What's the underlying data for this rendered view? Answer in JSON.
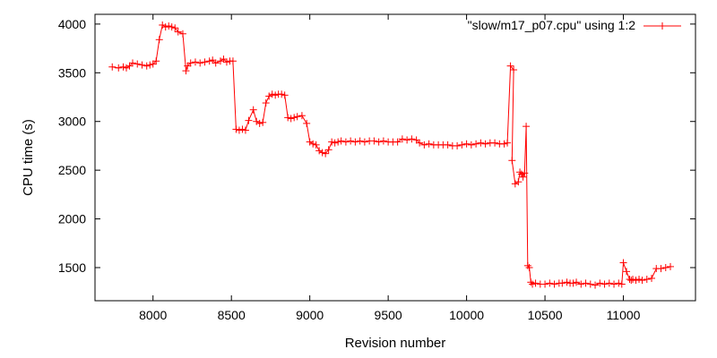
{
  "chart_data": {
    "type": "line",
    "xlabel": "Revision number",
    "ylabel": "CPU time (s)",
    "xlim": [
      7630,
      11460
    ],
    "ylim": [
      1160,
      4100
    ],
    "xticks": [
      8000,
      8500,
      9000,
      9500,
      10000,
      10500,
      11000
    ],
    "yticks": [
      1500,
      2000,
      2500,
      3000,
      3500,
      4000
    ],
    "grid": false,
    "legend_position": "top-right",
    "series": [
      {
        "name": "\"slow/m17_p07.cpu\" using 1:2",
        "color": "#ff0000",
        "marker": "plus",
        "points": [
          [
            7740,
            3560
          ],
          [
            7780,
            3550
          ],
          [
            7810,
            3560
          ],
          [
            7830,
            3550
          ],
          [
            7850,
            3570
          ],
          [
            7870,
            3600
          ],
          [
            7900,
            3590
          ],
          [
            7930,
            3580
          ],
          [
            7960,
            3570
          ],
          [
            7980,
            3580
          ],
          [
            8000,
            3590
          ],
          [
            8020,
            3620
          ],
          [
            8040,
            3840
          ],
          [
            8060,
            3990
          ],
          [
            8080,
            3970
          ],
          [
            8100,
            3980
          ],
          [
            8120,
            3970
          ],
          [
            8140,
            3960
          ],
          [
            8160,
            3920
          ],
          [
            8190,
            3900
          ],
          [
            8210,
            3520
          ],
          [
            8220,
            3570
          ],
          [
            8240,
            3600
          ],
          [
            8270,
            3610
          ],
          [
            8300,
            3600
          ],
          [
            8330,
            3610
          ],
          [
            8360,
            3620
          ],
          [
            8380,
            3630
          ],
          [
            8400,
            3600
          ],
          [
            8430,
            3620
          ],
          [
            8450,
            3640
          ],
          [
            8470,
            3610
          ],
          [
            8490,
            3620
          ],
          [
            8510,
            3620
          ],
          [
            8530,
            2920
          ],
          [
            8550,
            2910
          ],
          [
            8570,
            2920
          ],
          [
            8590,
            2910
          ],
          [
            8610,
            3010
          ],
          [
            8640,
            3120
          ],
          [
            8660,
            3000
          ],
          [
            8680,
            2980
          ],
          [
            8700,
            2990
          ],
          [
            8720,
            3190
          ],
          [
            8740,
            3260
          ],
          [
            8760,
            3280
          ],
          [
            8780,
            3270
          ],
          [
            8800,
            3280
          ],
          [
            8820,
            3280
          ],
          [
            8840,
            3270
          ],
          [
            8860,
            3040
          ],
          [
            8880,
            3030
          ],
          [
            8900,
            3040
          ],
          [
            8920,
            3050
          ],
          [
            8950,
            3060
          ],
          [
            8980,
            2980
          ],
          [
            9000,
            2790
          ],
          [
            9020,
            2770
          ],
          [
            9040,
            2760
          ],
          [
            9060,
            2700
          ],
          [
            9080,
            2680
          ],
          [
            9100,
            2670
          ],
          [
            9120,
            2710
          ],
          [
            9140,
            2790
          ],
          [
            9160,
            2780
          ],
          [
            9180,
            2790
          ],
          [
            9200,
            2800
          ],
          [
            9230,
            2790
          ],
          [
            9260,
            2800
          ],
          [
            9290,
            2790
          ],
          [
            9320,
            2800
          ],
          [
            9350,
            2790
          ],
          [
            9380,
            2800
          ],
          [
            9410,
            2800
          ],
          [
            9440,
            2790
          ],
          [
            9470,
            2800
          ],
          [
            9500,
            2790
          ],
          [
            9530,
            2790
          ],
          [
            9560,
            2790
          ],
          [
            9590,
            2820
          ],
          [
            9620,
            2810
          ],
          [
            9650,
            2820
          ],
          [
            9680,
            2810
          ],
          [
            9700,
            2780
          ],
          [
            9730,
            2760
          ],
          [
            9760,
            2770
          ],
          [
            9790,
            2760
          ],
          [
            9820,
            2760
          ],
          [
            9850,
            2760
          ],
          [
            9880,
            2760
          ],
          [
            9910,
            2750
          ],
          [
            9940,
            2750
          ],
          [
            9970,
            2760
          ],
          [
            10000,
            2770
          ],
          [
            10030,
            2760
          ],
          [
            10060,
            2770
          ],
          [
            10090,
            2780
          ],
          [
            10120,
            2770
          ],
          [
            10150,
            2780
          ],
          [
            10180,
            2780
          ],
          [
            10210,
            2770
          ],
          [
            10240,
            2770
          ],
          [
            10260,
            2780
          ],
          [
            10280,
            3570
          ],
          [
            10300,
            3530
          ],
          [
            10290,
            2600
          ],
          [
            10310,
            2360
          ],
          [
            10330,
            2380
          ],
          [
            10340,
            2480
          ],
          [
            10350,
            2460
          ],
          [
            10360,
            2430
          ],
          [
            10370,
            2470
          ],
          [
            10380,
            2950
          ],
          [
            10390,
            1520
          ],
          [
            10400,
            1500
          ],
          [
            10410,
            1350
          ],
          [
            10420,
            1330
          ],
          [
            10440,
            1340
          ],
          [
            10470,
            1330
          ],
          [
            10500,
            1330
          ],
          [
            10530,
            1340
          ],
          [
            10560,
            1330
          ],
          [
            10590,
            1340
          ],
          [
            10610,
            1340
          ],
          [
            10640,
            1350
          ],
          [
            10660,
            1340
          ],
          [
            10680,
            1340
          ],
          [
            10700,
            1350
          ],
          [
            10730,
            1330
          ],
          [
            10760,
            1340
          ],
          [
            10790,
            1330
          ],
          [
            10820,
            1320
          ],
          [
            10850,
            1340
          ],
          [
            10880,
            1330
          ],
          [
            10910,
            1340
          ],
          [
            10940,
            1330
          ],
          [
            10970,
            1340
          ],
          [
            10990,
            1330
          ],
          [
            11000,
            1550
          ],
          [
            11020,
            1460
          ],
          [
            11040,
            1380
          ],
          [
            11050,
            1370
          ],
          [
            11060,
            1380
          ],
          [
            11080,
            1370
          ],
          [
            11100,
            1380
          ],
          [
            11120,
            1370
          ],
          [
            11150,
            1380
          ],
          [
            11180,
            1390
          ],
          [
            11210,
            1490
          ],
          [
            11240,
            1490
          ],
          [
            11270,
            1500
          ],
          [
            11300,
            1510
          ]
        ]
      }
    ]
  }
}
